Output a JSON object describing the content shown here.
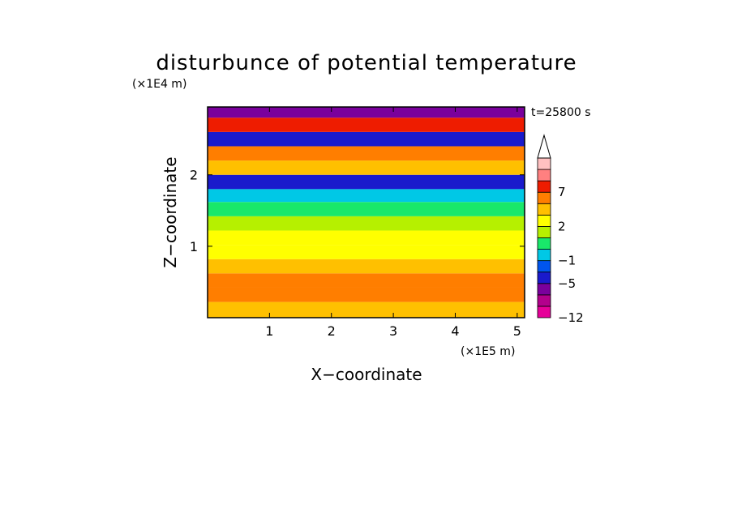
{
  "chart_data": {
    "type": "heatmap",
    "title": "disturbunce of potential temperature",
    "xlabel": "X−coordinate",
    "ylabel": "Z−coordinate",
    "x_scale_label": "(×1E5 m)",
    "y_scale_label": "(×1E4 m)",
    "time_label": "t=25800 s",
    "xlim": [
      0,
      5.12
    ],
    "ylim": [
      0,
      2.95
    ],
    "x_ticks": [
      1,
      2,
      3,
      4,
      5
    ],
    "x_tick_labels": [
      "1",
      "2",
      "3",
      "4",
      "5"
    ],
    "y_ticks": [
      1,
      2
    ],
    "y_tick_labels": [
      "1",
      "2"
    ],
    "colorbar": {
      "levels": [
        -12,
        -9,
        -7,
        -5,
        -3,
        -1,
        0,
        1,
        2,
        4,
        6,
        7,
        8,
        10
      ],
      "tick_values": [
        -12,
        -5,
        -1,
        2,
        7
      ],
      "tick_labels": [
        "−12",
        "−5",
        "−1",
        "2",
        "7"
      ],
      "colors": [
        "#e60099",
        "#b3008c",
        "#7a009c",
        "#1a1acc",
        "#0055ee",
        "#00c8e6",
        "#19e86a",
        "#b6f000",
        "#ffff00",
        "#ffc000",
        "#ff7e00",
        "#ee1c00",
        "#ff8080",
        "#ffc0c0"
      ],
      "extend": "max"
    },
    "bands": [
      {
        "z_from": 0.0,
        "z_to": 0.22,
        "level": 4
      },
      {
        "z_from": 0.22,
        "z_to": 0.42,
        "level": 6
      },
      {
        "z_from": 0.42,
        "z_to": 0.62,
        "level": 6
      },
      {
        "z_from": 0.62,
        "z_to": 0.82,
        "level": 4
      },
      {
        "z_from": 0.82,
        "z_to": 1.02,
        "level": 2
      },
      {
        "z_from": 1.02,
        "z_to": 1.22,
        "level": 2
      },
      {
        "z_from": 1.22,
        "z_to": 1.42,
        "level": 1
      },
      {
        "z_from": 1.42,
        "z_to": 1.62,
        "level": 0
      },
      {
        "z_from": 1.62,
        "z_to": 1.8,
        "level": -1
      },
      {
        "z_from": 1.8,
        "z_to": 2.0,
        "level": -5
      },
      {
        "z_from": 2.0,
        "z_to": 2.2,
        "level": 4
      },
      {
        "z_from": 2.2,
        "z_to": 2.4,
        "level": 6
      },
      {
        "z_from": 2.4,
        "z_to": 2.6,
        "level": -5
      },
      {
        "z_from": 2.6,
        "z_to": 2.8,
        "level": 7
      },
      {
        "z_from": 2.8,
        "z_to": 2.95,
        "level": -7
      }
    ]
  }
}
